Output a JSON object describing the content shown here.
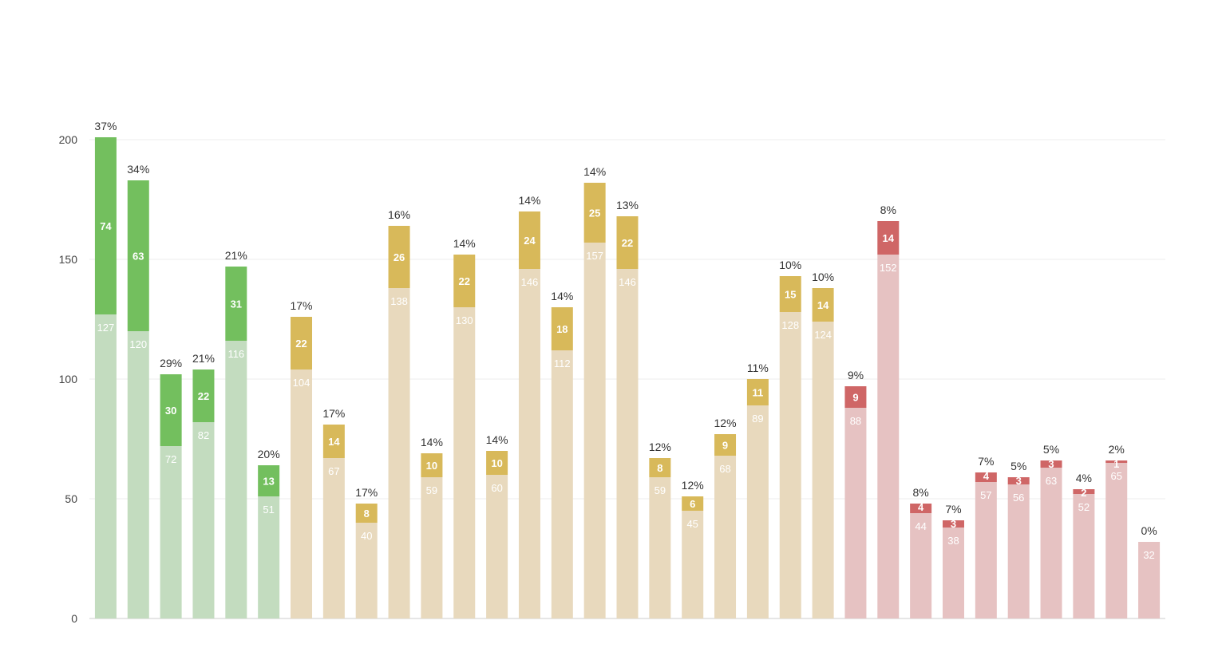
{
  "chart_data": {
    "type": "bar",
    "stacked": true,
    "title": "",
    "xlabel": "",
    "ylabel": "",
    "ylim": [
      0,
      200
    ],
    "yticks": [
      0,
      50,
      100,
      150,
      200
    ],
    "grid": true,
    "legend": "none",
    "colors": {
      "green_base": "#c3dcbf",
      "green_top": "#73bf5e",
      "yellow_base": "#e8d9bd",
      "yellow_top": "#d8b95a",
      "red_base": "#e6c2c2",
      "red_top": "#cf6666"
    },
    "bars": [
      {
        "base": 127,
        "top": 74,
        "percent": "37%",
        "group": "green"
      },
      {
        "base": 120,
        "top": 63,
        "percent": "34%",
        "group": "green"
      },
      {
        "base": 72,
        "top": 30,
        "percent": "29%",
        "group": "green"
      },
      {
        "base": 82,
        "top": 22,
        "percent": "21%",
        "group": "green"
      },
      {
        "base": 116,
        "top": 31,
        "percent": "21%",
        "group": "green"
      },
      {
        "base": 51,
        "top": 13,
        "percent": "20%",
        "group": "green"
      },
      {
        "base": 104,
        "top": 22,
        "percent": "17%",
        "group": "yellow"
      },
      {
        "base": 67,
        "top": 14,
        "percent": "17%",
        "group": "yellow"
      },
      {
        "base": 40,
        "top": 8,
        "percent": "17%",
        "group": "yellow"
      },
      {
        "base": 138,
        "top": 26,
        "percent": "16%",
        "group": "yellow"
      },
      {
        "base": 59,
        "top": 10,
        "percent": "14%",
        "group": "yellow"
      },
      {
        "base": 130,
        "top": 22,
        "percent": "14%",
        "group": "yellow"
      },
      {
        "base": 60,
        "top": 10,
        "percent": "14%",
        "group": "yellow"
      },
      {
        "base": 146,
        "top": 24,
        "percent": "14%",
        "group": "yellow"
      },
      {
        "base": 112,
        "top": 18,
        "percent": "14%",
        "group": "yellow"
      },
      {
        "base": 157,
        "top": 25,
        "percent": "14%",
        "group": "yellow"
      },
      {
        "base": 146,
        "top": 22,
        "percent": "13%",
        "group": "yellow"
      },
      {
        "base": 59,
        "top": 8,
        "percent": "12%",
        "group": "yellow"
      },
      {
        "base": 45,
        "top": 6,
        "percent": "12%",
        "group": "yellow"
      },
      {
        "base": 68,
        "top": 9,
        "percent": "12%",
        "group": "yellow"
      },
      {
        "base": 89,
        "top": 11,
        "percent": "11%",
        "group": "yellow"
      },
      {
        "base": 128,
        "top": 15,
        "percent": "10%",
        "group": "yellow"
      },
      {
        "base": 124,
        "top": 14,
        "percent": "10%",
        "group": "yellow"
      },
      {
        "base": 88,
        "top": 9,
        "percent": "9%",
        "group": "red"
      },
      {
        "base": 152,
        "top": 14,
        "percent": "8%",
        "group": "red"
      },
      {
        "base": 44,
        "top": 4,
        "percent": "8%",
        "group": "red"
      },
      {
        "base": 38,
        "top": 3,
        "percent": "7%",
        "group": "red"
      },
      {
        "base": 57,
        "top": 4,
        "percent": "7%",
        "group": "red"
      },
      {
        "base": 56,
        "top": 3,
        "percent": "5%",
        "group": "red"
      },
      {
        "base": 63,
        "top": 3,
        "percent": "5%",
        "group": "red"
      },
      {
        "base": 52,
        "top": 2,
        "percent": "4%",
        "group": "red"
      },
      {
        "base": 65,
        "top": 1,
        "percent": "2%",
        "group": "red"
      },
      {
        "base": 32,
        "top": 0,
        "percent": "0%",
        "group": "red"
      }
    ]
  }
}
